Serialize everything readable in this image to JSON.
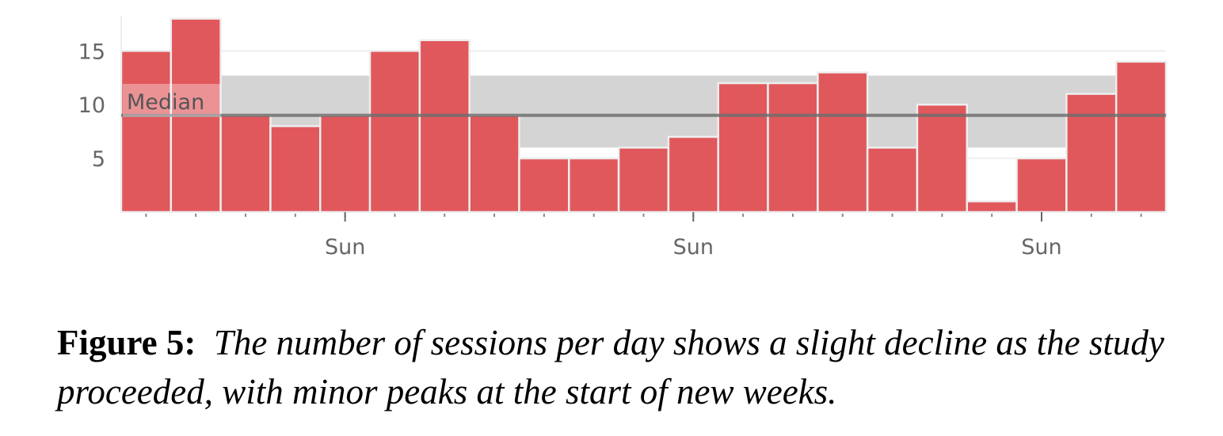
{
  "colors": {
    "bar": "#e0585c",
    "bar_edge": "#eeeeee",
    "band": "#d4d4d4",
    "median_line": "#6f6f6f",
    "grid": "#eeeeee",
    "axis_text": "#666666"
  },
  "chart_data": {
    "type": "bar",
    "values": [
      15,
      18,
      9,
      8,
      9,
      15,
      16,
      9,
      5,
      5,
      6,
      7,
      12,
      12,
      13,
      6,
      10,
      1,
      5,
      11,
      14
    ],
    "ylim": [
      0,
      19
    ],
    "yticks": [
      5,
      10,
      15
    ],
    "xtick_labels": [
      {
        "label": "Sun",
        "index": 4
      },
      {
        "label": "Sun",
        "index": 11
      },
      {
        "label": "Sun",
        "index": 18
      }
    ],
    "median": {
      "label": "Median",
      "value": 9
    },
    "band_range": [
      6,
      12.7
    ],
    "grid": true
  },
  "caption": {
    "label": "Figure 5:",
    "text": "The number of sessions per day shows a slight decline as the study proceeded, with minor peaks at the start of new weeks."
  }
}
